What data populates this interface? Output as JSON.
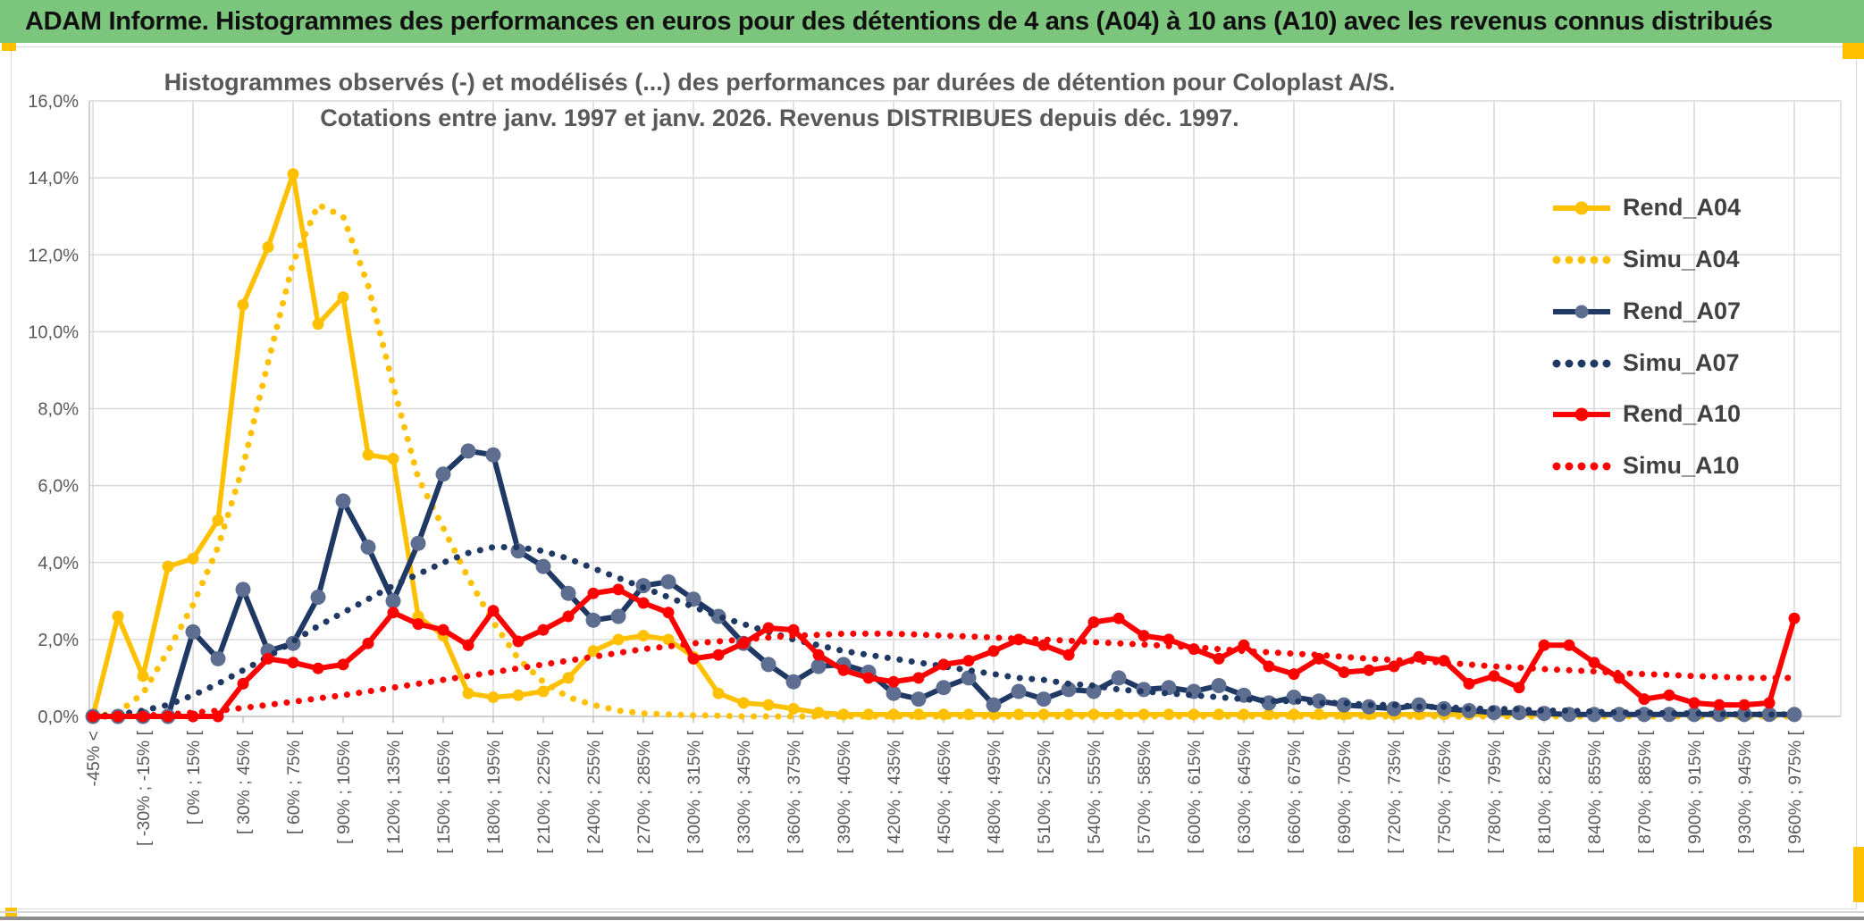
{
  "window": {
    "title": "ADAM Informe. Histogrammes des performances en euros pour des détentions de 4 ans (A04) à 10 ans (A10) avec les revenus connus distribués",
    "header_bg": "#7CC57C",
    "accent_yellow": "#FFC000"
  },
  "chart_data": {
    "type": "line",
    "title_line1": "Histogrammes observés (-) et modélisés (...) des performances par durées de détention pour Coloplast A/S.",
    "title_line2": "Cotations entre janv. 1997 et janv. 2026. Revenus DISTRIBUES depuis déc. 1997.",
    "grid": true,
    "legend_position": "right",
    "y_axis": {
      "min": 0,
      "max": 16,
      "step": 2,
      "tick_labels": [
        "0,0%",
        "2,0%",
        "4,0%",
        "6,0%",
        "8,0%",
        "10,0%",
        "12,0%",
        "14,0%",
        "16,0%"
      ]
    },
    "x_tick_labels": [
      "-45% <",
      "[ -30% ; -15% [",
      "[ 0% ; 15% [",
      "[ 30% ; 45% [",
      "[ 60% ; 75% [",
      "[ 90% ; 105% [",
      "[ 120% ; 135% [",
      "[ 150% ; 165% [",
      "[ 180% ; 195% [",
      "[ 210% ; 225% [",
      "[ 240% ; 255% [",
      "[ 270% ; 285% [",
      "[ 300% ; 315% [",
      "[ 330% ; 345% [",
      "[ 360% ; 375% [",
      "[ 390% ; 405% [",
      "[ 420% ; 435% [",
      "[ 450% ; 465% [",
      "[ 480% ; 495% [",
      "[ 510% ; 525% [",
      "[ 540% ; 555% [",
      "[ 570% ; 585% [",
      "[ 600% ; 615% [",
      "[ 630% ; 645% [",
      "[ 660% ; 675% [",
      "[ 690% ; 705% [",
      "[ 720% ; 735% [",
      "[ 750% ; 765% [",
      "[ 780% ; 795% [",
      "[ 810% ; 825% [",
      "[ 840% ; 855% [",
      "[ 870% ; 885% [",
      "[ 900% ; 915% [",
      "[ 930% ; 945% [",
      "[ 960% ; 975% ["
    ],
    "series": [
      {
        "name": "Rend_A04",
        "color": "#FFC000",
        "style": "solid",
        "marker": true,
        "marker_color": "#FFC000",
        "values": [
          0,
          2.6,
          1.05,
          3.9,
          4.1,
          5.1,
          10.7,
          12.2,
          14.1,
          10.2,
          10.9,
          6.8,
          6.7,
          2.6,
          2.1,
          0.6,
          0.5,
          0.55,
          0.65,
          1.0,
          1.7,
          2.0,
          2.1,
          2.0,
          1.55,
          0.6,
          0.35,
          0.3,
          0.2,
          0.1,
          0.05,
          0.05,
          0.05,
          0.05,
          0.05,
          0.05,
          0.05,
          0.05,
          0.05,
          0.05,
          0.05,
          0.05,
          0.05,
          0.05,
          0.05,
          0.05,
          0.05,
          0.05,
          0.05,
          0.05,
          0.05,
          0.05,
          0.05,
          0.05,
          0.05,
          0.05,
          0.05,
          0.05,
          0.05,
          0.05,
          0.05,
          0.05,
          0.05,
          0.05,
          0.05,
          0.05,
          0.05,
          0.05,
          0.05
        ]
      },
      {
        "name": "Simu_A04",
        "color": "#FFC000",
        "style": "dotted",
        "marker": false,
        "marker_color": "#FFC000",
        "values": [
          0,
          0.1,
          0.6,
          1.7,
          2.9,
          4.4,
          6.5,
          9.2,
          11.8,
          13.3,
          13.0,
          11.2,
          8.6,
          6.2,
          4.9,
          3.6,
          2.45,
          1.5,
          0.9,
          0.5,
          0.3,
          0.15,
          0.08,
          0.05,
          0.03,
          0.02,
          0,
          0,
          0,
          0,
          0,
          0,
          0,
          0,
          0,
          0,
          0,
          0,
          0,
          0,
          0,
          0,
          0,
          0,
          0,
          0,
          0,
          0,
          0,
          0,
          0,
          0,
          0,
          0,
          0,
          0,
          0,
          0,
          0,
          0,
          0,
          0,
          0,
          0,
          0,
          0,
          0,
          0,
          0
        ]
      },
      {
        "name": "Rend_A07",
        "color": "#1F3864",
        "style": "solid",
        "marker": true,
        "marker_color": "#5E6E90",
        "values": [
          0,
          0,
          0,
          0,
          2.2,
          1.5,
          3.3,
          1.7,
          1.9,
          3.1,
          5.6,
          4.4,
          3.0,
          4.5,
          6.3,
          6.9,
          6.8,
          4.3,
          3.9,
          3.2,
          2.5,
          2.6,
          3.4,
          3.5,
          3.05,
          2.6,
          1.9,
          1.35,
          0.9,
          1.3,
          1.35,
          1.15,
          0.6,
          0.45,
          0.75,
          1.0,
          0.3,
          0.65,
          0.45,
          0.7,
          0.65,
          1.0,
          0.7,
          0.75,
          0.65,
          0.8,
          0.55,
          0.35,
          0.5,
          0.4,
          0.3,
          0.25,
          0.2,
          0.3,
          0.2,
          0.15,
          0.1,
          0.1,
          0.08,
          0.05,
          0.05,
          0.05,
          0.05,
          0.05,
          0.05,
          0.05,
          0.05,
          0.05,
          0.05
        ]
      },
      {
        "name": "Simu_A07",
        "color": "#1F3864",
        "style": "dotted",
        "marker": false,
        "marker_color": "#1F3864",
        "values": [
          0,
          0.05,
          0.15,
          0.3,
          0.55,
          0.85,
          1.2,
          1.55,
          1.95,
          2.35,
          2.7,
          3.05,
          3.4,
          3.7,
          4.0,
          4.25,
          4.4,
          4.4,
          4.3,
          4.1,
          3.85,
          3.6,
          3.35,
          3.1,
          2.85,
          2.6,
          2.4,
          2.2,
          2.0,
          1.85,
          1.7,
          1.6,
          1.5,
          1.4,
          1.3,
          1.2,
          1.1,
          1.0,
          0.95,
          0.85,
          0.8,
          0.7,
          0.65,
          0.6,
          0.55,
          0.5,
          0.45,
          0.4,
          0.4,
          0.35,
          0.35,
          0.3,
          0.3,
          0.25,
          0.25,
          0.2,
          0.2,
          0.18,
          0.15,
          0.15,
          0.12,
          0.1,
          0.1,
          0.08,
          0.08,
          0.06,
          0.05,
          0.05,
          0.05
        ]
      },
      {
        "name": "Rend_A10",
        "color": "#FF0000",
        "style": "solid",
        "marker": true,
        "marker_color": "#FF0000",
        "values": [
          0,
          0,
          0,
          0,
          0,
          0,
          0.85,
          1.5,
          1.4,
          1.25,
          1.35,
          1.9,
          2.7,
          2.4,
          2.25,
          1.85,
          2.75,
          1.95,
          2.25,
          2.6,
          3.2,
          3.3,
          2.95,
          2.7,
          1.5,
          1.6,
          1.9,
          2.3,
          2.25,
          1.6,
          1.2,
          1.0,
          0.9,
          1.0,
          1.35,
          1.45,
          1.7,
          2.0,
          1.85,
          1.6,
          2.45,
          2.55,
          2.1,
          2.0,
          1.75,
          1.5,
          1.85,
          1.3,
          1.1,
          1.5,
          1.15,
          1.2,
          1.3,
          1.55,
          1.45,
          0.85,
          1.05,
          0.75,
          1.85,
          1.85,
          1.4,
          1.0,
          0.45,
          0.55,
          0.35,
          0.3,
          0.3,
          0.35,
          2.55
        ]
      },
      {
        "name": "Simu_A10",
        "color": "#FF0000",
        "style": "dotted",
        "marker": false,
        "marker_color": "#FF0000",
        "values": [
          0,
          0,
          0.02,
          0.05,
          0.1,
          0.15,
          0.22,
          0.3,
          0.38,
          0.47,
          0.55,
          0.65,
          0.75,
          0.85,
          0.95,
          1.05,
          1.15,
          1.25,
          1.35,
          1.45,
          1.55,
          1.65,
          1.75,
          1.82,
          1.9,
          1.95,
          2.0,
          2.05,
          2.1,
          2.12,
          2.15,
          2.15,
          2.15,
          2.13,
          2.1,
          2.08,
          2.05,
          2.02,
          2.0,
          1.97,
          1.93,
          1.9,
          1.87,
          1.83,
          1.8,
          1.75,
          1.7,
          1.67,
          1.63,
          1.6,
          1.55,
          1.5,
          1.47,
          1.43,
          1.4,
          1.35,
          1.3,
          1.27,
          1.23,
          1.2,
          1.17,
          1.13,
          1.1,
          1.08,
          1.05,
          1.03,
          1.0,
          1.0,
          1.0
        ]
      }
    ]
  }
}
